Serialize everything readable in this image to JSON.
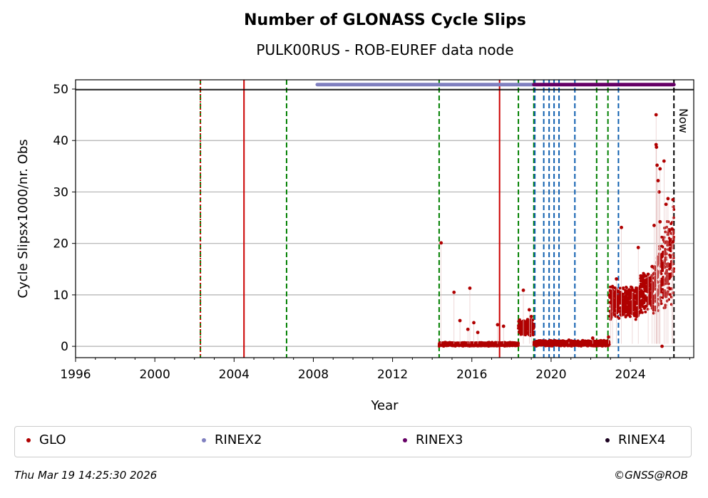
{
  "chart_data": {
    "type": "scatter",
    "title": "Number of GLONASS Cycle Slips",
    "subtitle": "PULK00RUS - ROB-EUREF data node",
    "xlabel": "Year",
    "ylabel": "Cycle Slipsx1000/nr. Obs",
    "xlim": [
      1996,
      2027.2
    ],
    "ylim": [
      -2.2,
      51.8
    ],
    "xticks": [
      "1996",
      "2000",
      "2004",
      "2008",
      "2012",
      "2016",
      "2020",
      "2024"
    ],
    "yticks": [
      "0",
      "10",
      "20",
      "30",
      "40",
      "50"
    ],
    "grid": "y",
    "vlines": [
      {
        "x": 2002.3,
        "color": "#008000",
        "style": "dashed"
      },
      {
        "x": 2002.3,
        "color": "#cc0000",
        "style": "dotted"
      },
      {
        "x": 2004.5,
        "color": "#cc0000",
        "style": "solid"
      },
      {
        "x": 2006.65,
        "color": "#008000",
        "style": "dashed"
      },
      {
        "x": 2014.35,
        "color": "#008000",
        "style": "dashed"
      },
      {
        "x": 2017.4,
        "color": "#cc0000",
        "style": "solid"
      },
      {
        "x": 2018.35,
        "color": "#008000",
        "style": "dashed"
      },
      {
        "x": 2019.13,
        "color": "#008000",
        "style": "dashed"
      },
      {
        "x": 2019.18,
        "color": "#1060b0",
        "style": "dashed"
      },
      {
        "x": 2019.63,
        "color": "#1060b0",
        "style": "dashed"
      },
      {
        "x": 2019.9,
        "color": "#1060b0",
        "style": "dashed"
      },
      {
        "x": 2020.15,
        "color": "#1060b0",
        "style": "dashed"
      },
      {
        "x": 2020.4,
        "color": "#1060b0",
        "style": "dashed"
      },
      {
        "x": 2021.2,
        "color": "#1060b0",
        "style": "dashed"
      },
      {
        "x": 2022.3,
        "color": "#008000",
        "style": "dashed"
      },
      {
        "x": 2022.87,
        "color": "#008000",
        "style": "dashed"
      },
      {
        "x": 2023.4,
        "color": "#1060b0",
        "style": "dashed"
      },
      {
        "x": 2026.2,
        "color": "#000000",
        "style": "dashed",
        "label": "Now"
      }
    ],
    "format_bars": [
      {
        "name": "RINEX2",
        "start": 2008.2,
        "end": 2019.13,
        "y": 51,
        "color": "#8080c0"
      },
      {
        "name": "RINEX3",
        "start": 2019.13,
        "end": 2026.2,
        "y": 51,
        "color": "#660066"
      }
    ],
    "series": [
      {
        "name": "GLO",
        "color": "#b00000",
        "dense_bands": [
          [
            2014.35,
            2018.35,
            0,
            0.8
          ],
          [
            2018.35,
            2019.13,
            2,
            5.5
          ],
          [
            2019.13,
            2022.95,
            0,
            1.2
          ],
          [
            2022.95,
            2024.5,
            5,
            12
          ],
          [
            2024.5,
            2025.2,
            6,
            15
          ],
          [
            2025.2,
            2026.2,
            6,
            28
          ]
        ],
        "points": [
          [
            2014.45,
            20.1
          ],
          [
            2015.1,
            10.5
          ],
          [
            2015.9,
            11.3
          ],
          [
            2015.4,
            5
          ],
          [
            2016.1,
            4.6
          ],
          [
            2016.3,
            2.7
          ],
          [
            2015.8,
            3.3
          ],
          [
            2017.3,
            4.2
          ],
          [
            2017.6,
            3.9
          ],
          [
            2018.6,
            10.9
          ],
          [
            2018.9,
            7.1
          ],
          [
            2019.0,
            5.8
          ],
          [
            2020.9,
            1.2
          ],
          [
            2022.1,
            1.6
          ],
          [
            2022.9,
            1.8
          ],
          [
            2023.0,
            8.5
          ],
          [
            2023.1,
            11.5
          ],
          [
            2023.55,
            23.1
          ],
          [
            2023.3,
            13.1
          ],
          [
            2024.1,
            11.0
          ],
          [
            2024.4,
            19.2
          ],
          [
            2024.9,
            14.0
          ],
          [
            2025.1,
            15.5
          ],
          [
            2025.3,
            45
          ],
          [
            2025.3,
            39.2
          ],
          [
            2025.32,
            38.7
          ],
          [
            2025.35,
            35.2
          ],
          [
            2025.7,
            36
          ],
          [
            2025.5,
            34.5
          ],
          [
            2025.45,
            30
          ],
          [
            2025.4,
            32.2
          ],
          [
            2025.6,
            0
          ],
          [
            2025.9,
            28.7
          ],
          [
            2026.15,
            28.5
          ],
          [
            2026.1,
            22.8
          ],
          [
            2026.15,
            20.3
          ],
          [
            2025.8,
            27.6
          ],
          [
            2025.2,
            23.5
          ],
          [
            2025.5,
            24.2
          ]
        ]
      }
    ],
    "legend": [
      {
        "label": "GLO",
        "color": "#b00000"
      },
      {
        "label": "RINEX2",
        "color": "#8080c0"
      },
      {
        "label": "RINEX3",
        "color": "#660066"
      },
      {
        "label": "RINEX4",
        "color": "#1a0020"
      }
    ],
    "legend_position": "bottom"
  },
  "footer": {
    "timestamp": "Thu Mar 19 14:25:30 2026",
    "copyright": "©GNSS@ROB"
  }
}
